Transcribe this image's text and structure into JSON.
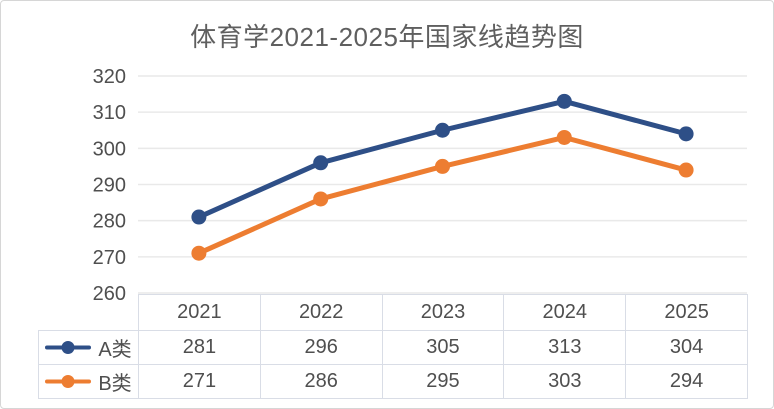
{
  "chart_data": {
    "type": "line",
    "title": "体育学2021-2025年国家线趋势图",
    "categories": [
      "2021",
      "2022",
      "2023",
      "2024",
      "2025"
    ],
    "series": [
      {
        "name": "A类",
        "values": [
          281,
          296,
          305,
          313,
          304
        ],
        "color": "#2e4f87"
      },
      {
        "name": "B类",
        "values": [
          271,
          286,
          295,
          303,
          294
        ],
        "color": "#ed7d31"
      }
    ],
    "ylim": [
      260,
      320
    ],
    "ytick_step": 10,
    "ytick_labels": [
      "320",
      "310",
      "300",
      "290",
      "280",
      "270",
      "260"
    ],
    "grid": true,
    "legend_position": "table-left",
    "xlabel": "",
    "ylabel": ""
  },
  "colors": {
    "grid_line": "#e9e9e9",
    "axis_text": "#4f4f4f",
    "table_border": "#d9dde6",
    "title_text": "#5f5f5f",
    "frame_border": "#d6d6d6"
  }
}
